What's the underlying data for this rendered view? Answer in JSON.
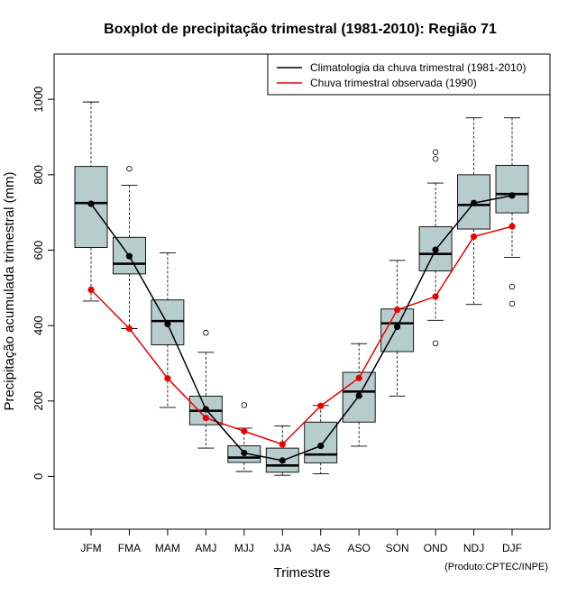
{
  "chart_data": {
    "type": "boxplot",
    "title": "Boxplot de precipitação trimestral (1981-2010): Região 71",
    "xlabel": "Trimestre",
    "ylabel": "Precipitação acumulada trimestral (mm)",
    "ylim": [
      -140,
      1120
    ],
    "yticks": [
      0,
      200,
      400,
      600,
      800,
      1000
    ],
    "credit": "(Produto:CPTEC/INPE)",
    "legend_position": "top-right",
    "colors": {
      "box_fill": "#b7cccc",
      "climatology": "#000000",
      "observed": "#ee0000"
    },
    "categories": [
      "JFM",
      "FMA",
      "MAM",
      "AMJ",
      "MJJ",
      "JJA",
      "JAS",
      "ASO",
      "SON",
      "OND",
      "NDJ",
      "DJF"
    ],
    "boxes": [
      {
        "whisker_low": 465,
        "q1": 607,
        "median": 725,
        "q3": 822,
        "whisker_high": 993,
        "outliers": []
      },
      {
        "whisker_low": 392,
        "q1": 537,
        "median": 564,
        "q3": 634,
        "whisker_high": 772,
        "outliers": [
          816
        ]
      },
      {
        "whisker_low": 183,
        "q1": 349,
        "median": 412,
        "q3": 468,
        "whisker_high": 593,
        "outliers": []
      },
      {
        "whisker_low": 75,
        "q1": 137,
        "median": 174,
        "q3": 213,
        "whisker_high": 329,
        "outliers": [
          381
        ]
      },
      {
        "whisker_low": 13,
        "q1": 37,
        "median": 50,
        "q3": 81,
        "whisker_high": 128,
        "outliers": [
          189
        ]
      },
      {
        "whisker_low": 3,
        "q1": 11,
        "median": 29,
        "q3": 75,
        "whisker_high": 134,
        "outliers": []
      },
      {
        "whisker_low": 7,
        "q1": 36,
        "median": 58,
        "q3": 144,
        "whisker_high": 188,
        "outliers": []
      },
      {
        "whisker_low": 80,
        "q1": 144,
        "median": 225,
        "q3": 276,
        "whisker_high": 352,
        "outliers": []
      },
      {
        "whisker_low": 213,
        "q1": 331,
        "median": 406,
        "q3": 444,
        "whisker_high": 573,
        "outliers": []
      },
      {
        "whisker_low": 414,
        "q1": 545,
        "median": 590,
        "q3": 662,
        "whisker_high": 778,
        "outliers": [
          353,
          842,
          860
        ]
      },
      {
        "whisker_low": 456,
        "q1": 656,
        "median": 720,
        "q3": 800,
        "whisker_high": 951,
        "outliers": []
      },
      {
        "whisker_low": 581,
        "q1": 699,
        "median": 749,
        "q3": 825,
        "whisker_high": 951,
        "outliers": [
          458,
          503
        ]
      }
    ],
    "series": [
      {
        "name": "Climatologia da chuva trimestral (1981-2010)",
        "color": "#000000",
        "values": [
          723,
          584,
          404,
          178,
          62,
          42,
          81,
          214,
          397,
          601,
          725,
          745
        ]
      },
      {
        "name": "Chuva trimestral observada (1990)",
        "color": "#ee0000",
        "values": [
          495,
          392,
          260,
          155,
          120,
          85,
          187,
          261,
          442,
          477,
          636,
          663
        ]
      }
    ]
  }
}
